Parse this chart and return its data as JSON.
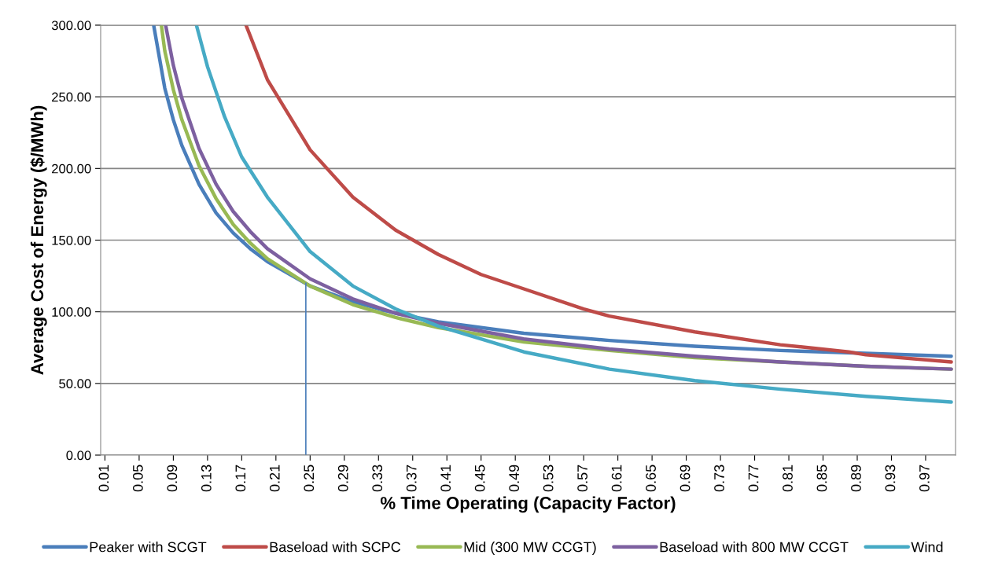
{
  "chart_data": {
    "type": "line",
    "xlabel": "% Time Operating (Capacity Factor)",
    "ylabel": "Average Cost of Energy ($/MWh)",
    "xlim": [
      0.005,
      1.005
    ],
    "xticks": [
      {
        "value": 0.01,
        "label": "0.01"
      },
      {
        "value": 0.05,
        "label": "0.05"
      },
      {
        "value": 0.09,
        "label": "0.09"
      },
      {
        "value": 0.13,
        "label": "0.13"
      },
      {
        "value": 0.17,
        "label": "0.17"
      },
      {
        "value": 0.21,
        "label": "0.21"
      },
      {
        "value": 0.25,
        "label": "0.25"
      },
      {
        "value": 0.29,
        "label": "0.29"
      },
      {
        "value": 0.33,
        "label": "0.33"
      },
      {
        "value": 0.37,
        "label": "0.37"
      },
      {
        "value": 0.41,
        "label": "0.41"
      },
      {
        "value": 0.45,
        "label": "0.45"
      },
      {
        "value": 0.49,
        "label": "0.49"
      },
      {
        "value": 0.53,
        "label": "0.53"
      },
      {
        "value": 0.57,
        "label": "0.57"
      },
      {
        "value": 0.61,
        "label": "0.61"
      },
      {
        "value": 0.65,
        "label": "0.65"
      },
      {
        "value": 0.69,
        "label": "0.69"
      },
      {
        "value": 0.73,
        "label": "0.73"
      },
      {
        "value": 0.77,
        "label": "0.77"
      },
      {
        "value": 0.81,
        "label": "0.81"
      },
      {
        "value": 0.85,
        "label": "0.85"
      },
      {
        "value": 0.89,
        "label": "0.89"
      },
      {
        "value": 0.93,
        "label": "0.93"
      },
      {
        "value": 0.97,
        "label": "0.97"
      }
    ],
    "ylim": [
      0,
      300
    ],
    "yticks": [
      {
        "value": 0,
        "label": "0.00"
      },
      {
        "value": 50,
        "label": "50.00"
      },
      {
        "value": 100,
        "label": "100.00"
      },
      {
        "value": 150,
        "label": "150.00"
      },
      {
        "value": 200,
        "label": "200.00"
      },
      {
        "value": 250,
        "label": "250.00"
      },
      {
        "value": 300,
        "label": "300.00"
      }
    ],
    "grid": "y",
    "legend": "bottom",
    "marker": "none",
    "line_style": "solid",
    "series": [
      {
        "name": "Peaker with SCGT",
        "color": "#4a7ebb",
        "x": [
          0.067,
          0.08,
          0.09,
          0.1,
          0.12,
          0.14,
          0.16,
          0.18,
          0.2,
          0.25,
          0.3,
          0.35,
          0.4,
          0.5,
          0.6,
          0.7,
          0.8,
          0.9,
          1.0
        ],
        "values": [
          300,
          256,
          234,
          216,
          189,
          169,
          155,
          144,
          135,
          118,
          107,
          99,
          93,
          85,
          80,
          76,
          73,
          71,
          69
        ]
      },
      {
        "name": "Baseload with SCPC",
        "color": "#be4b48",
        "x": [
          0.175,
          0.2,
          0.25,
          0.3,
          0.35,
          0.4,
          0.45,
          0.5,
          0.57,
          0.6,
          0.7,
          0.8,
          0.88,
          0.9,
          1.0
        ],
        "values": [
          300,
          262,
          213,
          180,
          157,
          140,
          126,
          116,
          102,
          97,
          86,
          77,
          72,
          70,
          65
        ]
      },
      {
        "name": "Mid (300 MW CCGT)",
        "color": "#98b954",
        "x": [
          0.076,
          0.08,
          0.09,
          0.1,
          0.12,
          0.14,
          0.16,
          0.18,
          0.2,
          0.25,
          0.3,
          0.35,
          0.4,
          0.5,
          0.6,
          0.7,
          0.8,
          0.9,
          1.0
        ],
        "values": [
          300,
          282,
          255,
          234,
          202,
          179,
          161,
          148,
          137,
          118,
          105,
          96,
          89,
          79,
          73,
          68,
          65,
          62,
          60
        ]
      },
      {
        "name": "Baseload with 800 MW CCGT",
        "color": "#7d60a0",
        "x": [
          0.081,
          0.09,
          0.1,
          0.12,
          0.14,
          0.16,
          0.18,
          0.2,
          0.25,
          0.3,
          0.35,
          0.4,
          0.5,
          0.6,
          0.7,
          0.8,
          0.9,
          1.0
        ],
        "values": [
          300,
          272,
          249,
          214,
          189,
          170,
          156,
          144,
          123,
          109,
          99,
          92,
          81,
          74,
          69,
          65,
          62,
          60
        ]
      },
      {
        "name": "Wind",
        "color": "#46aac5",
        "x": [
          0.117,
          0.13,
          0.15,
          0.17,
          0.2,
          0.25,
          0.3,
          0.35,
          0.4,
          0.5,
          0.6,
          0.7,
          0.8,
          0.9,
          1.0
        ],
        "values": [
          300,
          271,
          236,
          208,
          180,
          142,
          118,
          102,
          90,
          72,
          60,
          52,
          46,
          41,
          37
        ]
      },
      {
        "color": "#4a7ebb",
        "x": [
          0.245,
          0.245
        ],
        "values": [
          0,
          120
        ]
      }
    ]
  }
}
